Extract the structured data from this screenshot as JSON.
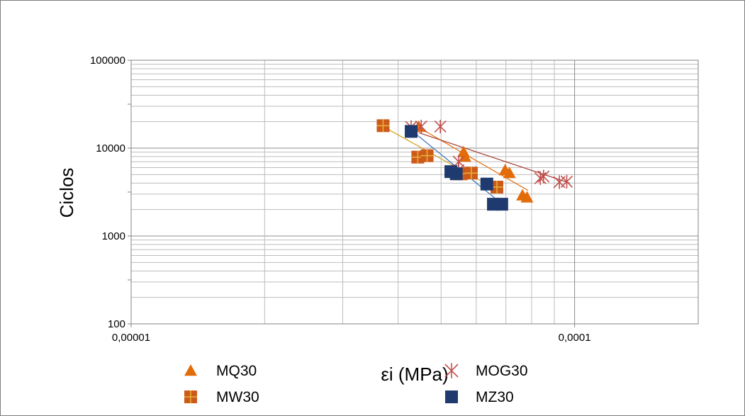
{
  "chart_data": {
    "type": "scatter",
    "title": "",
    "xlabel": "εi (MPa)",
    "ylabel": "Ciclos",
    "x_scale": "log",
    "y_scale": "log",
    "xlim": [
      1e-05,
      0.00019
    ],
    "ylim": [
      100,
      100000
    ],
    "x_ticks": [
      {
        "value": 1e-05,
        "label": "0,00001"
      },
      {
        "value": 0.0001,
        "label": "0,0001"
      }
    ],
    "y_ticks": [
      {
        "value": 100,
        "label": "100"
      },
      {
        "value": 1000,
        "label": "1000"
      },
      {
        "value": 10000,
        "label": "10000"
      },
      {
        "value": 100000,
        "label": "100000"
      }
    ],
    "grid": true,
    "legend_position": "bottom",
    "series": [
      {
        "name": "MQ30",
        "marker": "triangle",
        "color": "#E36C0A",
        "trendline_color": "#E36C0A",
        "points": [
          {
            "x": 4.45e-05,
            "y": 17500
          },
          {
            "x": 5.62e-05,
            "y": 9000
          },
          {
            "x": 5.66e-05,
            "y": 8000
          },
          {
            "x": 6.97e-05,
            "y": 5600
          },
          {
            "x": 7.13e-05,
            "y": 5200
          },
          {
            "x": 7.63e-05,
            "y": 2900
          },
          {
            "x": 7.81e-05,
            "y": 2750
          }
        ],
        "trendline": [
          {
            "x": 4.38e-05,
            "y": 18000
          },
          {
            "x": 7.85e-05,
            "y": 3300
          }
        ]
      },
      {
        "name": "MOG30",
        "marker": "star",
        "color": "#C0504D",
        "trendline_color": "#A33A2A",
        "points": [
          {
            "x": 4.28e-05,
            "y": 17400
          },
          {
            "x": 4.51e-05,
            "y": 17600
          },
          {
            "x": 4.98e-05,
            "y": 17600
          },
          {
            "x": 5.48e-05,
            "y": 7000
          },
          {
            "x": 5.47e-05,
            "y": 5600
          },
          {
            "x": 8.37e-05,
            "y": 4550
          },
          {
            "x": 8.51e-05,
            "y": 4750
          },
          {
            "x": 9.24e-05,
            "y": 4100
          },
          {
            "x": 9.6e-05,
            "y": 4150
          }
        ],
        "trendline": [
          {
            "x": 4.45e-05,
            "y": 15000
          },
          {
            "x": 9.75e-05,
            "y": 4000
          }
        ]
      },
      {
        "name": "MW30",
        "marker": "square-cross",
        "color": "#CC5B1A",
        "trendline_color": "#D4A017",
        "points": [
          {
            "x": 3.7e-05,
            "y": 18000
          },
          {
            "x": 4.43e-05,
            "y": 7900
          },
          {
            "x": 4.65e-05,
            "y": 8200
          },
          {
            "x": 5.55e-05,
            "y": 5100
          },
          {
            "x": 5.85e-05,
            "y": 5200
          },
          {
            "x": 6.68e-05,
            "y": 3600
          }
        ],
        "trendline": [
          {
            "x": 3.7e-05,
            "y": 17600
          },
          {
            "x": 6.65e-05,
            "y": 3400
          }
        ]
      },
      {
        "name": "MZ30",
        "marker": "square",
        "color": "#1F3A6E",
        "trendline_color": "#2E6DB4",
        "points": [
          {
            "x": 4.28e-05,
            "y": 15500
          },
          {
            "x": 5.26e-05,
            "y": 5400
          },
          {
            "x": 5.41e-05,
            "y": 5100
          },
          {
            "x": 6.34e-05,
            "y": 3900
          },
          {
            "x": 6.56e-05,
            "y": 2300
          },
          {
            "x": 6.85e-05,
            "y": 2300
          }
        ],
        "trendline": [
          {
            "x": 4.28e-05,
            "y": 16000
          },
          {
            "x": 6.95e-05,
            "y": 2200
          }
        ]
      }
    ]
  }
}
